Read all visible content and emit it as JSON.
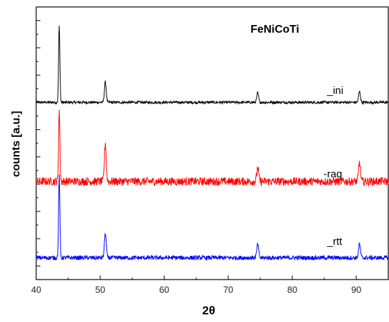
{
  "chart_data": {
    "type": "line",
    "title": "FeNiCoTi",
    "xlabel": "2θ",
    "ylabel": "counts [a.u.]",
    "xlim": [
      40,
      95
    ],
    "xticks": [
      "40",
      "50",
      "60",
      "70",
      "80",
      "90"
    ],
    "ylim": [
      0,
      100
    ],
    "grid": false,
    "series": [
      {
        "name": "_ini",
        "color": "#000000",
        "baseline": 65,
        "noise": 0.5,
        "peaks": [
          {
            "x": 43.6,
            "height": 28
          },
          {
            "x": 50.8,
            "height": 7.5
          },
          {
            "x": 74.6,
            "height": 3.5
          },
          {
            "x": 90.5,
            "height": 4
          }
        ]
      },
      {
        "name": "-raq",
        "color": "#ff0000",
        "baseline": 36,
        "noise": 1.5,
        "peaks": [
          {
            "x": 43.6,
            "height": 26
          },
          {
            "x": 50.8,
            "height": 14
          },
          {
            "x": 74.6,
            "height": 5
          },
          {
            "x": 90.5,
            "height": 7
          }
        ]
      },
      {
        "name": "_rtt",
        "color": "#0000ff",
        "baseline": 8,
        "noise": 0.8,
        "peaks": [
          {
            "x": 43.6,
            "height": 30
          },
          {
            "x": 50.8,
            "height": 9
          },
          {
            "x": 74.6,
            "height": 5
          },
          {
            "x": 90.5,
            "height": 5
          }
        ]
      }
    ]
  }
}
